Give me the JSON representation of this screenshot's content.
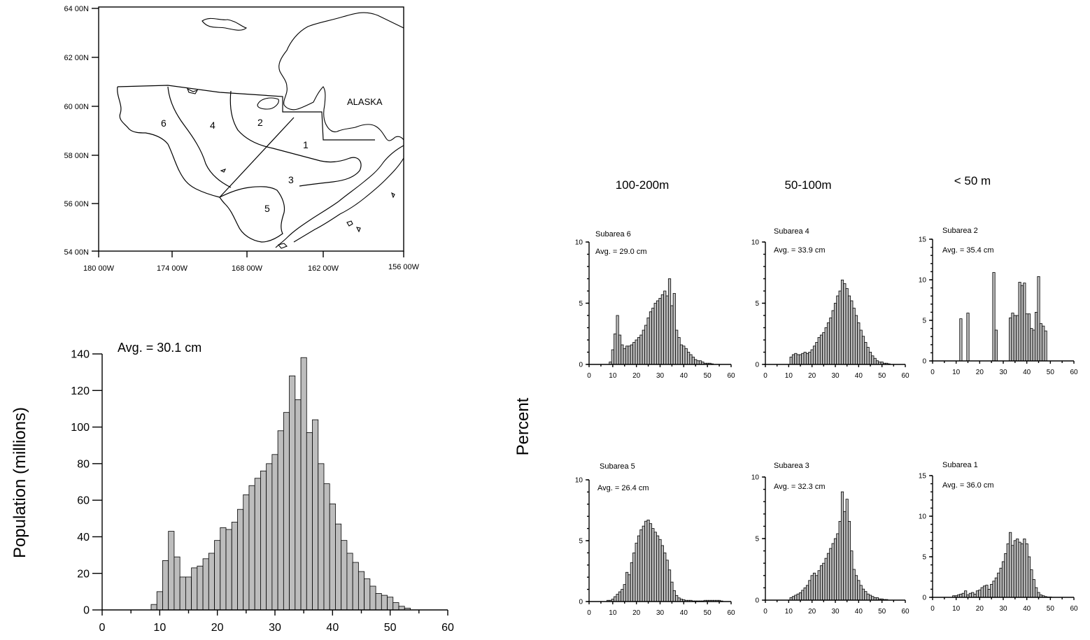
{
  "map": {
    "region_label": "ALASKA",
    "lat_ticks": [
      "64 00N",
      "62 00N",
      "60 00N",
      "58 00N",
      "56 00N",
      "54 00N"
    ],
    "lon_ticks": [
      "180 00W",
      "174 00W",
      "168 00W",
      "162 00W",
      "156 00W"
    ],
    "subarea_labels": [
      "1",
      "2",
      "3",
      "4",
      "5",
      "6"
    ]
  },
  "depth_headers": [
    "100-200m",
    "50-100m",
    "< 50 m"
  ],
  "shared_ylabel": "Percent",
  "chart_data": [
    {
      "type": "bar",
      "title": "Avg. = 30.1 cm",
      "xlabel": "",
      "ylabel": "Population (millions)",
      "xlim": [
        0,
        60
      ],
      "ylim": [
        0,
        140
      ],
      "xticks": [
        0,
        10,
        20,
        30,
        40,
        50,
        60
      ],
      "yticks": [
        0,
        20,
        40,
        60,
        80,
        100,
        120,
        140
      ],
      "bin_width": 1,
      "x": [
        9,
        10,
        11,
        12,
        13,
        14,
        15,
        16,
        17,
        18,
        19,
        20,
        21,
        22,
        23,
        24,
        25,
        26,
        27,
        28,
        29,
        30,
        31,
        32,
        33,
        34,
        35,
        36,
        37,
        38,
        39,
        40,
        41,
        42,
        43,
        44,
        45,
        46,
        47,
        48,
        49,
        50,
        51,
        52,
        53
      ],
      "values": [
        3,
        10,
        27,
        43,
        29,
        18,
        18,
        23,
        24,
        28,
        31,
        38,
        45,
        44,
        48,
        55,
        63,
        68,
        72,
        76,
        80,
        85,
        98,
        108,
        128,
        115,
        138,
        97,
        104,
        80,
        69,
        58,
        47,
        38,
        31,
        26,
        21,
        17,
        13,
        9,
        8,
        7,
        4,
        2,
        1
      ]
    },
    {
      "type": "bar",
      "name": "Subarea 6",
      "title": "Avg. = 29.0 cm",
      "xlim": [
        0,
        60
      ],
      "ylim": [
        0,
        10
      ],
      "xticks": [
        0,
        10,
        20,
        30,
        40,
        50,
        60
      ],
      "yticks": [
        0,
        5,
        10
      ],
      "bin_width": 1,
      "x": [
        9,
        10,
        11,
        12,
        13,
        14,
        15,
        16,
        17,
        18,
        19,
        20,
        21,
        22,
        23,
        24,
        25,
        26,
        27,
        28,
        29,
        30,
        31,
        32,
        33,
        34,
        35,
        36,
        37,
        38,
        39,
        40,
        41,
        42,
        43,
        44,
        45,
        46,
        47,
        48,
        49,
        50,
        51,
        52
      ],
      "values": [
        0.2,
        1.2,
        2.5,
        4.0,
        2.4,
        1.6,
        1.3,
        1.5,
        1.5,
        1.6,
        1.8,
        2.0,
        2.2,
        2.4,
        2.8,
        3.2,
        3.8,
        4.3,
        4.6,
        5.0,
        5.2,
        5.4,
        5.7,
        6.0,
        5.6,
        7.0,
        4.8,
        5.8,
        2.8,
        2.2,
        1.6,
        1.5,
        1.3,
        1.0,
        0.8,
        0.6,
        0.4,
        0.3,
        0.3,
        0.2,
        0.1,
        0.1,
        0.1,
        0.05
      ]
    },
    {
      "type": "bar",
      "name": "Subarea 4",
      "title": "Avg. = 33.9 cm",
      "xlim": [
        0,
        60
      ],
      "ylim": [
        0,
        10
      ],
      "xticks": [
        0,
        10,
        20,
        30,
        40,
        50,
        60
      ],
      "yticks": [
        0,
        5,
        10
      ],
      "bin_width": 1,
      "x": [
        11,
        12,
        13,
        14,
        15,
        16,
        17,
        18,
        19,
        20,
        21,
        22,
        23,
        24,
        25,
        26,
        27,
        28,
        29,
        30,
        31,
        32,
        33,
        34,
        35,
        36,
        37,
        38,
        39,
        40,
        41,
        42,
        43,
        44,
        45,
        46,
        47,
        48,
        49,
        50,
        51,
        52,
        53
      ],
      "values": [
        0.6,
        0.8,
        0.9,
        0.8,
        0.8,
        0.9,
        1.0,
        0.9,
        1.0,
        1.2,
        1.5,
        1.8,
        2.2,
        2.4,
        2.6,
        3.0,
        3.4,
        3.8,
        4.4,
        5.0,
        5.6,
        6.0,
        6.9,
        6.6,
        6.2,
        5.6,
        5.2,
        4.6,
        4.0,
        3.4,
        2.8,
        2.3,
        1.8,
        1.4,
        1.0,
        0.7,
        0.5,
        0.3,
        0.2,
        0.2,
        0.1,
        0.1,
        0.05
      ]
    },
    {
      "type": "bar",
      "name": "Subarea 2",
      "title": "Avg. = 35.4 cm",
      "xlim": [
        0,
        60
      ],
      "ylim": [
        0,
        15
      ],
      "xticks": [
        0,
        10,
        20,
        30,
        40,
        50,
        60
      ],
      "yticks": [
        0,
        5,
        10,
        15
      ],
      "bin_width": 1,
      "x": [
        12,
        15,
        26,
        27,
        33,
        34,
        35,
        36,
        37,
        38,
        39,
        40,
        41,
        42,
        43,
        44,
        45,
        46,
        47,
        48
      ],
      "values": [
        5.2,
        5.9,
        10.9,
        3.8,
        5.3,
        5.9,
        5.6,
        5.6,
        9.7,
        9.3,
        9.6,
        5.8,
        5.8,
        4.0,
        3.8,
        6.0,
        10.4,
        4.6,
        4.3,
        3.7
      ]
    },
    {
      "type": "bar",
      "name": "Subarea 5",
      "title": "Avg. = 26.4 cm",
      "xlim": [
        0,
        60
      ],
      "ylim": [
        0,
        10
      ],
      "xticks": [
        0,
        10,
        20,
        30,
        40,
        50,
        60
      ],
      "yticks": [
        0,
        5,
        10
      ],
      "bin_width": 1,
      "x": [
        8,
        9,
        10,
        11,
        12,
        13,
        14,
        15,
        16,
        17,
        18,
        19,
        20,
        21,
        22,
        23,
        24,
        25,
        26,
        27,
        28,
        29,
        30,
        31,
        32,
        33,
        34,
        35,
        36,
        37,
        38,
        39,
        40,
        41,
        42,
        43,
        44,
        45,
        46,
        47,
        48,
        49,
        50,
        51,
        52,
        53,
        54,
        55,
        56
      ],
      "values": [
        0.1,
        0.1,
        0.2,
        0.4,
        0.6,
        0.8,
        1.0,
        1.4,
        2.4,
        2.2,
        3.2,
        4.0,
        4.8,
        5.4,
        5.9,
        6.2,
        6.6,
        6.7,
        6.4,
        6.0,
        5.7,
        5.4,
        5.1,
        4.6,
        4.0,
        3.4,
        2.6,
        1.6,
        0.9,
        0.5,
        0.3,
        0.2,
        0.15,
        0.1,
        0.1,
        0.1,
        0.05,
        0.05,
        0.05,
        0.05,
        0.05,
        0.1,
        0.1,
        0.1,
        0.1,
        0.1,
        0.1,
        0.1,
        0.05
      ]
    },
    {
      "type": "bar",
      "name": "Subarea 3",
      "title": "Avg. = 32.3 cm",
      "xlim": [
        0,
        60
      ],
      "ylim": [
        0,
        10
      ],
      "xticks": [
        0,
        10,
        20,
        30,
        40,
        50,
        60
      ],
      "yticks": [
        0,
        5,
        10
      ],
      "bin_width": 1,
      "x": [
        11,
        12,
        13,
        14,
        15,
        16,
        17,
        18,
        19,
        20,
        21,
        22,
        23,
        24,
        25,
        26,
        27,
        28,
        29,
        30,
        31,
        32,
        33,
        34,
        35,
        36,
        37,
        38,
        39,
        40,
        41,
        42,
        43,
        44,
        45,
        46,
        47,
        48,
        49,
        50,
        51,
        52
      ],
      "values": [
        0.2,
        0.3,
        0.4,
        0.5,
        0.6,
        0.8,
        1.0,
        1.2,
        1.6,
        2.0,
        2.2,
        2.0,
        2.4,
        2.8,
        3.0,
        3.4,
        3.8,
        4.2,
        4.6,
        5.0,
        5.4,
        6.4,
        8.8,
        7.2,
        8.2,
        6.4,
        4.0,
        2.5,
        2.0,
        1.6,
        1.2,
        0.9,
        0.7,
        0.5,
        0.4,
        0.3,
        0.2,
        0.2,
        0.1,
        0.1,
        0.05,
        0.05
      ]
    },
    {
      "type": "bar",
      "name": "Subarea 1",
      "title": "Avg. = 36.0 cm",
      "xlim": [
        0,
        60
      ],
      "ylim": [
        0,
        15
      ],
      "xticks": [
        0,
        10,
        20,
        30,
        40,
        50,
        60
      ],
      "yticks": [
        0,
        5,
        10,
        15
      ],
      "bin_width": 1,
      "x": [
        9,
        10,
        11,
        12,
        13,
        14,
        15,
        16,
        17,
        18,
        19,
        20,
        21,
        22,
        23,
        24,
        25,
        26,
        27,
        28,
        29,
        30,
        31,
        32,
        33,
        34,
        35,
        36,
        37,
        38,
        39,
        40,
        41,
        42,
        43,
        44,
        45,
        46,
        47,
        48,
        49,
        50
      ],
      "values": [
        0.2,
        0.2,
        0.3,
        0.4,
        0.5,
        0.8,
        0.3,
        0.5,
        0.6,
        0.4,
        0.8,
        0.9,
        1.2,
        1.4,
        1.5,
        1.0,
        1.6,
        2.0,
        2.4,
        3.0,
        3.6,
        4.4,
        5.4,
        6.6,
        8.0,
        6.4,
        7.0,
        7.2,
        6.8,
        6.6,
        7.2,
        6.6,
        5.0,
        3.4,
        2.2,
        1.2,
        0.6,
        0.3,
        0.2,
        0.1,
        0.05,
        0.05
      ]
    }
  ]
}
